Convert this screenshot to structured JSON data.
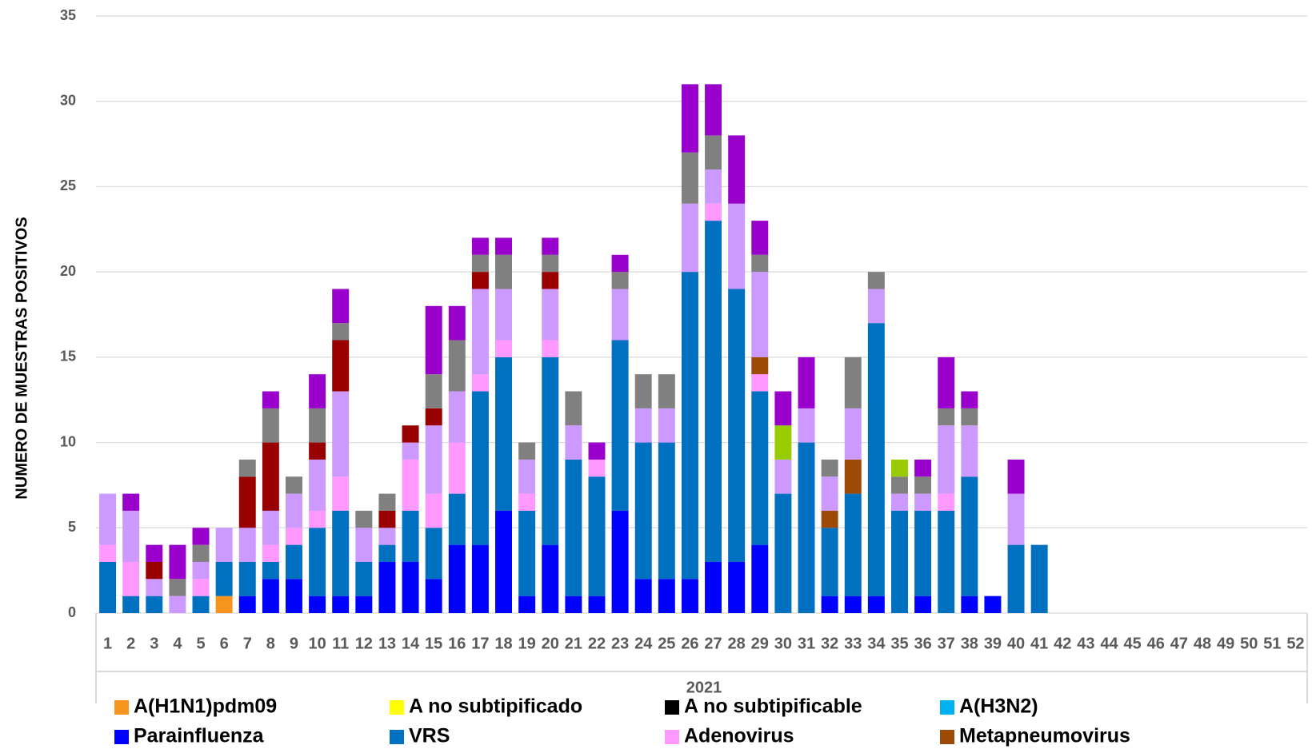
{
  "chart_data": {
    "type": "stacked_bar",
    "y_label": "NUMERO DE MUESTRAS POSITIVOS",
    "x_label": "2021",
    "categories": [
      "1",
      "2",
      "3",
      "4",
      "5",
      "6",
      "7",
      "8",
      "9",
      "10",
      "11",
      "12",
      "13",
      "14",
      "15",
      "16",
      "17",
      "18",
      "19",
      "20",
      "21",
      "22",
      "23",
      "24",
      "25",
      "26",
      "27",
      "28",
      "29",
      "30",
      "31",
      "32",
      "33",
      "34",
      "35",
      "36",
      "37",
      "38",
      "39",
      "40",
      "41",
      "42",
      "43",
      "44",
      "45",
      "46",
      "47",
      "48",
      "49",
      "50",
      "51",
      "52"
    ],
    "ylim": [
      0,
      35
    ],
    "yticks": [
      0,
      5,
      10,
      15,
      20,
      25,
      30,
      35
    ],
    "grid": true,
    "series": [
      {
        "name": "A(H1N1)pdm09",
        "color": "#f7941d",
        "values": [
          0,
          0,
          0,
          0,
          0,
          1,
          0,
          0,
          0,
          0,
          0,
          0,
          0,
          0,
          0,
          0,
          0,
          0,
          0,
          0,
          0,
          0,
          0,
          0,
          0,
          0,
          0,
          0,
          0,
          0,
          0,
          0,
          0,
          0,
          0,
          0,
          0,
          0,
          0,
          0,
          0,
          0,
          0,
          0,
          0,
          0,
          0,
          0,
          0,
          0,
          0,
          0
        ]
      },
      {
        "name": "A no subtipificado",
        "color": "#ffff00",
        "values": [
          0,
          0,
          0,
          0,
          0,
          0,
          0,
          0,
          0,
          0,
          0,
          0,
          0,
          0,
          0,
          0,
          0,
          0,
          0,
          0,
          0,
          0,
          0,
          0,
          0,
          0,
          0,
          0,
          0,
          0,
          0,
          0,
          0,
          0,
          0,
          0,
          0,
          0,
          0,
          0,
          0,
          0,
          0,
          0,
          0,
          0,
          0,
          0,
          0,
          0,
          0,
          0
        ]
      },
      {
        "name": "A no subtipificable",
        "color": "#000000",
        "values": [
          0,
          0,
          0,
          0,
          0,
          0,
          0,
          0,
          0,
          0,
          0,
          0,
          0,
          0,
          0,
          0,
          0,
          0,
          0,
          0,
          0,
          0,
          0,
          0,
          0,
          0,
          0,
          0,
          0,
          0,
          0,
          0,
          0,
          0,
          0,
          0,
          0,
          0,
          0,
          0,
          0,
          0,
          0,
          0,
          0,
          0,
          0,
          0,
          0,
          0,
          0,
          0
        ]
      },
      {
        "name": "A(H3N2)",
        "color": "#00b0f0",
        "values": [
          0,
          0,
          0,
          0,
          0,
          0,
          0,
          0,
          0,
          0,
          0,
          0,
          0,
          0,
          0,
          0,
          0,
          0,
          0,
          0,
          0,
          0,
          0,
          0,
          0,
          0,
          0,
          0,
          0,
          0,
          0,
          0,
          0,
          0,
          0,
          0,
          0,
          0,
          0,
          0,
          0,
          0,
          0,
          0,
          0,
          0,
          0,
          0,
          0,
          0,
          0,
          0
        ]
      },
      {
        "name": "Parainfluenza",
        "color": "#0000ff",
        "values": [
          0,
          0,
          0,
          0,
          0,
          0,
          1,
          2,
          2,
          1,
          1,
          1,
          3,
          3,
          2,
          4,
          4,
          6,
          1,
          4,
          1,
          1,
          6,
          2,
          2,
          2,
          3,
          3,
          4,
          0,
          0,
          1,
          1,
          1,
          0,
          1,
          0,
          1,
          1,
          0,
          0,
          0,
          0,
          0,
          0,
          0,
          0,
          0,
          0,
          0,
          0,
          0
        ]
      },
      {
        "name": "VRS",
        "color": "#0070c0",
        "values": [
          3,
          1,
          1,
          0,
          1,
          2,
          2,
          1,
          2,
          4,
          5,
          2,
          1,
          3,
          3,
          3,
          9,
          9,
          5,
          11,
          8,
          7,
          10,
          8,
          8,
          18,
          20,
          16,
          9,
          7,
          10,
          4,
          6,
          16,
          6,
          5,
          6,
          7,
          0,
          4,
          4,
          0,
          0,
          0,
          0,
          0,
          0,
          0,
          0,
          0,
          0,
          0
        ]
      },
      {
        "name": "Adenovirus",
        "color": "#ff99ff",
        "values": [
          1,
          2,
          0,
          0,
          1,
          0,
          0,
          1,
          1,
          1,
          2,
          0,
          0,
          3,
          2,
          3,
          1,
          1,
          1,
          1,
          0,
          1,
          0,
          0,
          0,
          0,
          1,
          0,
          1,
          0,
          0,
          0,
          0,
          0,
          0,
          0,
          1,
          0,
          0,
          0,
          0,
          0,
          0,
          0,
          0,
          0,
          0,
          0,
          0,
          0,
          0,
          0
        ]
      },
      {
        "name": "Metapneumovirus",
        "color": "#9c4a06",
        "values": [
          0,
          0,
          0,
          0,
          0,
          0,
          0,
          0,
          0,
          0,
          0,
          0,
          0,
          0,
          0,
          0,
          0,
          0,
          0,
          0,
          0,
          0,
          0,
          0,
          0,
          0,
          0,
          0,
          1,
          0,
          0,
          1,
          2,
          0,
          0,
          0,
          0,
          0,
          0,
          0,
          0,
          0,
          0,
          0,
          0,
          0,
          0,
          0,
          0,
          0,
          0,
          0
        ]
      },
      {
        "color": "#cc99ff",
        "values": [
          3,
          3,
          1,
          1,
          1,
          2,
          2,
          2,
          2,
          3,
          5,
          2,
          1,
          1,
          4,
          3,
          5,
          3,
          2,
          3,
          2,
          0,
          3,
          2,
          2,
          4,
          2,
          5,
          5,
          2,
          2,
          2,
          3,
          2,
          1,
          1,
          4,
          3,
          0,
          3,
          0,
          0,
          0,
          0,
          0,
          0,
          0,
          0,
          0,
          0,
          0,
          0
        ]
      },
      {
        "color": "#990000",
        "values": [
          0,
          0,
          1,
          0,
          0,
          0,
          3,
          4,
          0,
          1,
          3,
          0,
          1,
          1,
          1,
          0,
          1,
          0,
          0,
          1,
          0,
          0,
          0,
          0,
          0,
          0,
          0,
          0,
          0,
          0,
          0,
          0,
          0,
          0,
          0,
          0,
          0,
          0,
          0,
          0,
          0,
          0,
          0,
          0,
          0,
          0,
          0,
          0,
          0,
          0,
          0,
          0
        ]
      },
      {
        "color": "#808080",
        "values": [
          0,
          0,
          0,
          1,
          1,
          0,
          1,
          2,
          1,
          2,
          1,
          1,
          1,
          0,
          2,
          3,
          1,
          2,
          1,
          1,
          2,
          0,
          1,
          2,
          2,
          3,
          2,
          0,
          1,
          0,
          0,
          1,
          3,
          1,
          1,
          1,
          1,
          1,
          0,
          0,
          0,
          0,
          0,
          0,
          0,
          0,
          0,
          0,
          0,
          0,
          0,
          0
        ]
      },
      {
        "color": "#99cc00",
        "values": [
          0,
          0,
          0,
          0,
          0,
          0,
          0,
          0,
          0,
          0,
          0,
          0,
          0,
          0,
          0,
          0,
          0,
          0,
          0,
          0,
          0,
          0,
          0,
          0,
          0,
          0,
          0,
          0,
          0,
          2,
          0,
          0,
          0,
          0,
          1,
          0,
          0,
          0,
          0,
          0,
          0,
          0,
          0,
          0,
          0,
          0,
          0,
          0,
          0,
          0,
          0,
          0
        ]
      },
      {
        "color": "#9900cc",
        "values": [
          0,
          1,
          1,
          2,
          1,
          0,
          0,
          1,
          0,
          2,
          2,
          0,
          0,
          0,
          4,
          2,
          1,
          1,
          0,
          1,
          0,
          1,
          1,
          0,
          0,
          4,
          3,
          4,
          2,
          2,
          3,
          0,
          0,
          0,
          0,
          1,
          3,
          1,
          0,
          2,
          0,
          0,
          0,
          0,
          0,
          0,
          0,
          0,
          0,
          0,
          0,
          0
        ]
      }
    ]
  }
}
